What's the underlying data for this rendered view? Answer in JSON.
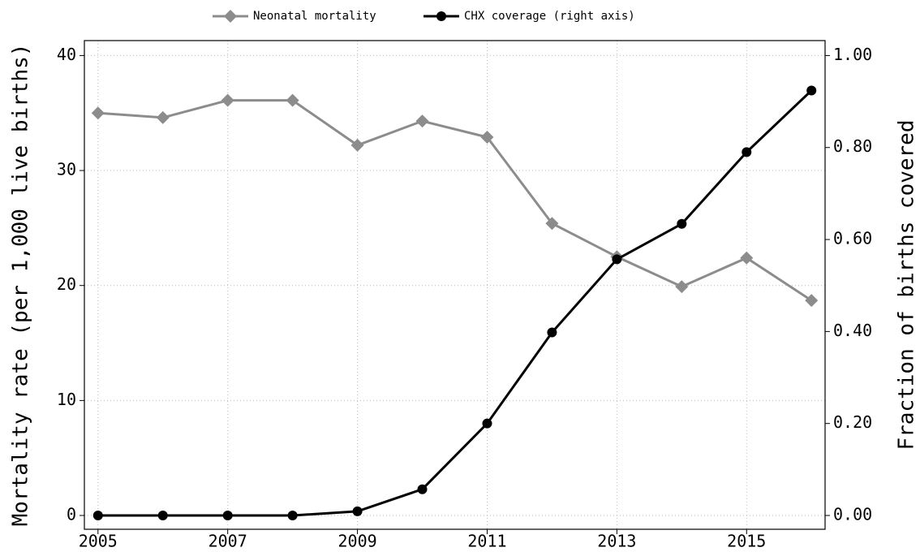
{
  "chart_data": {
    "type": "line",
    "x": [
      2005,
      2006,
      2007,
      2008,
      2009,
      2010,
      2011,
      2012,
      2013,
      2014,
      2015,
      2016
    ],
    "series": [
      {
        "name": "Neonatal mortality",
        "color": "#8c8c8c",
        "marker": "diamond",
        "values": [
          35.0,
          34.6,
          36.1,
          36.1,
          32.2,
          34.3,
          32.9,
          25.4,
          22.5,
          19.9,
          22.4,
          18.7
        ]
      },
      {
        "name": "CHX coverage (right axis)",
        "color": "#000000",
        "marker": "circle",
        "axis": "y2",
        "values": [
          0,
          0,
          0,
          0,
          0.009,
          0.057,
          0.2,
          0.398,
          0.557,
          0.634,
          0.79,
          0.924
        ]
      }
    ],
    "ylabel": "Mortality rate (per 1,000 live births)",
    "y2label": "Fraction of births covered",
    "xlim": [
      2004.79,
      2016.21
    ],
    "xticks": [
      2005,
      2007,
      2009,
      2011,
      2013,
      2015
    ],
    "ylim": [
      -1.2,
      41.3
    ],
    "yticks": [
      0,
      10,
      20,
      30,
      40
    ],
    "y2lim": [
      -0.03,
      1.0325
    ],
    "y2ticks": [
      {
        "value": 0,
        "label": "0.00"
      },
      {
        "value": 0.2,
        "label": "0.20"
      },
      {
        "value": 0.4,
        "label": "0.40"
      },
      {
        "value": 0.6,
        "label": "0.60"
      },
      {
        "value": 0.8,
        "label": "0.80"
      },
      {
        "value": 1,
        "label": "1.00"
      }
    ],
    "grid": true,
    "legend": "top"
  }
}
